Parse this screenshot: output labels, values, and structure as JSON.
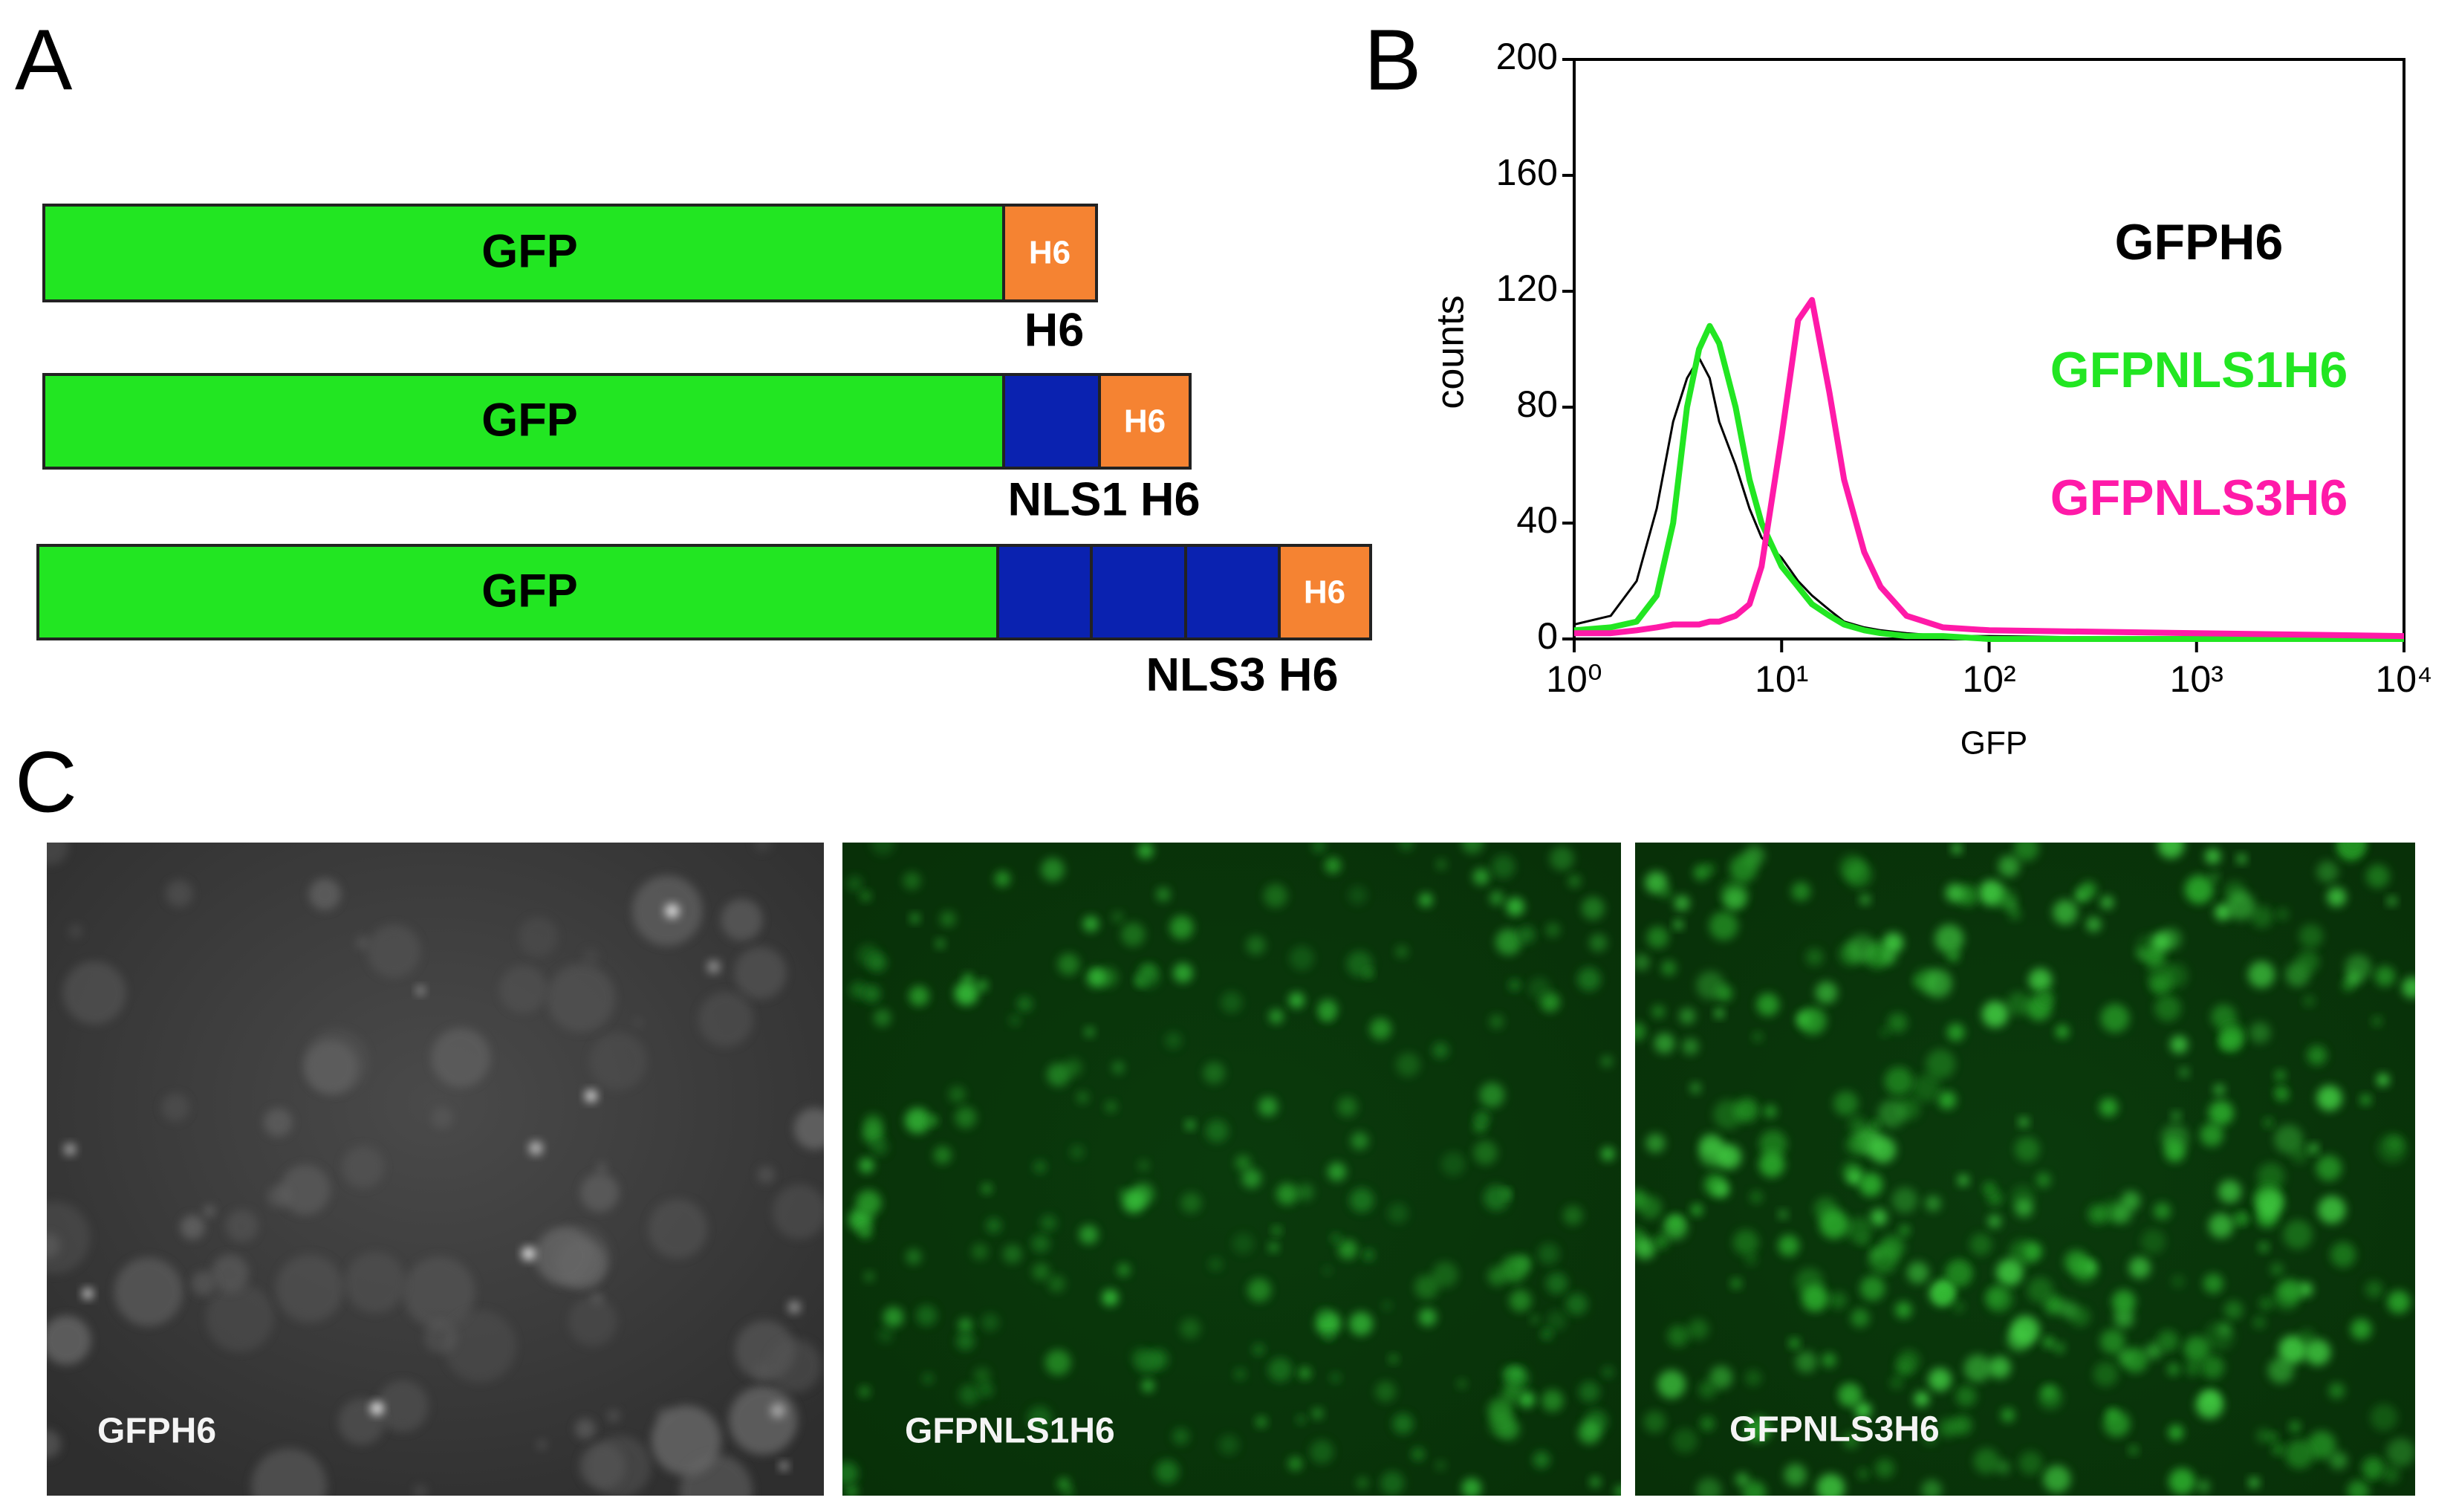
{
  "panel_labels": [
    "A",
    "B",
    "C"
  ],
  "diagram": {
    "rows": [
      {
        "gfp": "GFP",
        "tag": "H6",
        "caption": "H6"
      },
      {
        "gfp": "GFP",
        "tag": "H6",
        "caption": "NLS1 H6"
      },
      {
        "gfp": "GFP",
        "tag": "H6",
        "caption": "NLS3 H6"
      }
    ]
  },
  "chart_data": {
    "type": "line",
    "ylabel": "counts",
    "xlabel": "GFP",
    "xscale": "log",
    "legend": "right",
    "x": [
      1,
      1.5,
      2,
      2.5,
      3,
      3.5,
      4,
      4.5,
      5,
      6,
      7,
      8,
      10,
      12,
      14,
      17,
      20,
      25,
      30,
      40,
      60,
      100,
      1000,
      10000
    ],
    "series": [
      {
        "name": "GFPH6",
        "color": "#000000",
        "values": [
          5,
          8,
          20,
          45,
          75,
          90,
          97,
          90,
          75,
          60,
          45,
          35,
          28,
          20,
          15,
          10,
          6,
          4,
          3,
          2,
          1,
          1,
          0,
          0
        ]
      },
      {
        "name": "GFPNLS1H6",
        "color": "#22e622",
        "values": [
          3,
          4,
          6,
          15,
          40,
          80,
          100,
          108,
          102,
          80,
          55,
          40,
          25,
          18,
          12,
          8,
          5,
          3,
          2,
          1,
          1,
          0,
          0,
          0
        ]
      },
      {
        "name": "GFPNLS3H6",
        "color": "#ff1aa8",
        "values": [
          2,
          2,
          3,
          4,
          5,
          5,
          5,
          6,
          6,
          8,
          12,
          25,
          70,
          110,
          117,
          85,
          55,
          30,
          18,
          8,
          4,
          3,
          2,
          1
        ]
      }
    ],
    "xlim": [
      1,
      10000
    ],
    "xticks": [
      {
        "value": 1,
        "label": "10⁰"
      },
      {
        "value": 10,
        "label": "10¹"
      },
      {
        "value": 100,
        "label": "10²"
      },
      {
        "value": 1000,
        "label": "10³"
      },
      {
        "value": 10000,
        "label": "10⁴"
      }
    ],
    "ylim": [
      0,
      200
    ],
    "yticks": [
      0,
      40,
      80,
      120,
      160,
      200
    ]
  },
  "images": {
    "captions": [
      "GFPH6",
      "GFPNLS1H6",
      "GFPNLS3H6"
    ]
  }
}
